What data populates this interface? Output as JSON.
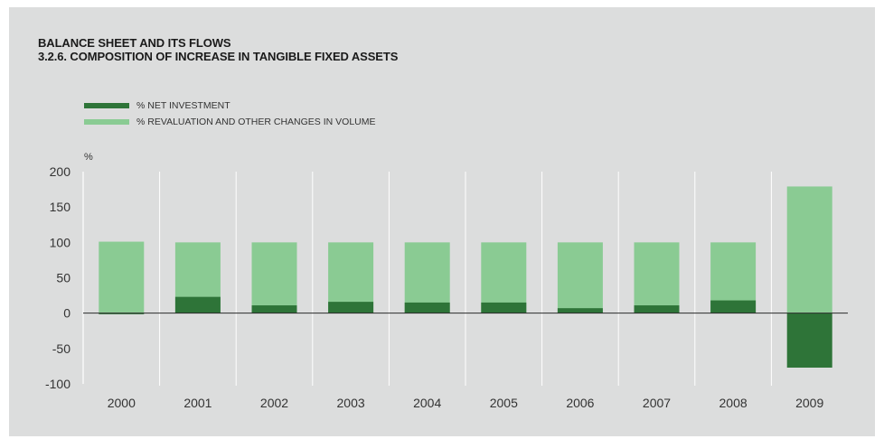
{
  "header": {
    "section": "BALANCE SHEET AND ITS FLOWS",
    "title": "3.2.6. COMPOSITION OF INCREASE IN TANGIBLE FIXED ASSETS"
  },
  "colors": {
    "background": "#dcdddd",
    "net_investment": "#2e7438",
    "revaluation": "#8acb93",
    "gridline": "#ffffff"
  },
  "chart_data": {
    "type": "bar",
    "title": "3.2.6. COMPOSITION OF INCREASE IN TANGIBLE FIXED ASSETS",
    "ylabel": "%",
    "xlabel": "",
    "ylim": [
      -100,
      200
    ],
    "yticks": [
      200,
      150,
      100,
      50,
      0,
      -50,
      -100
    ],
    "grid": true,
    "legend_position": "top-left",
    "categories": [
      "2000",
      "2001",
      "2002",
      "2003",
      "2004",
      "2005",
      "2006",
      "2007",
      "2008",
      "2009"
    ],
    "series": [
      {
        "name": "% NET INVESTMENT",
        "color": "#2e7438",
        "values": [
          -1,
          23,
          11,
          16,
          15,
          15,
          7,
          11,
          18,
          -77
        ]
      },
      {
        "name": "% REVALUATION AND OTHER CHANGES IN VOLUME",
        "color": "#8acb93",
        "values": [
          101,
          100,
          100,
          100,
          100,
          100,
          100,
          100,
          100,
          179
        ]
      }
    ]
  }
}
